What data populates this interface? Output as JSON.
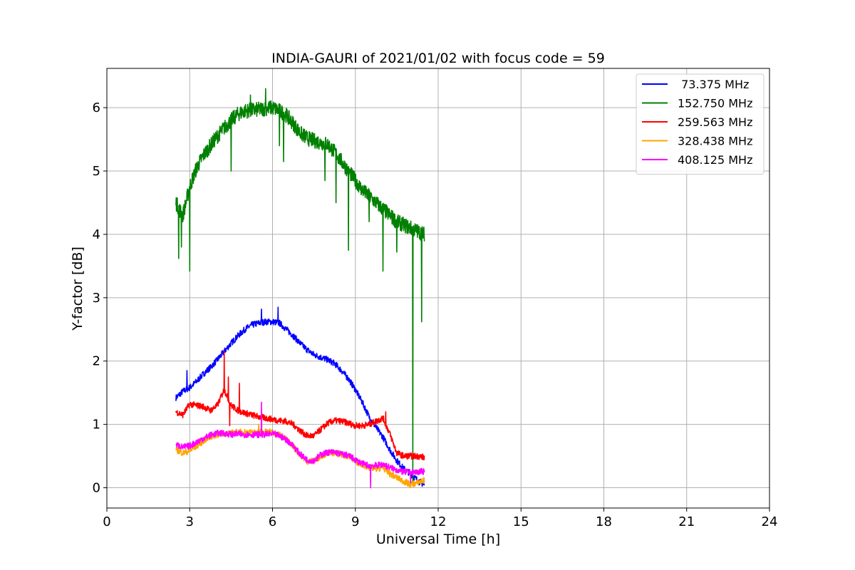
{
  "chart_data": {
    "type": "line",
    "title": "INDIA-GAURI of 2021/01/02 with focus code = 59",
    "xlabel": "Universal Time [h]",
    "ylabel": "Y-factor [dB]",
    "xlim": [
      0,
      24
    ],
    "ylim": [
      -0.32,
      6.62
    ],
    "xticks": [
      0,
      3,
      6,
      9,
      12,
      15,
      18,
      21,
      24
    ],
    "yticks": [
      0,
      1,
      2,
      3,
      4,
      5,
      6
    ],
    "xtick_labels": [
      "0",
      "3",
      "6",
      "9",
      "12",
      "15",
      "18",
      "21",
      "24"
    ],
    "ytick_labels": [
      "0",
      "1",
      "2",
      "3",
      "4",
      "5",
      "6"
    ],
    "grid": true,
    "legend_position": "top-right",
    "series": [
      {
        "name": " 73.375 MHz",
        "color": "#0000ff",
        "x": [
          2.5,
          2.75,
          3.0,
          3.25,
          3.5,
          3.75,
          4.0,
          4.25,
          4.5,
          4.75,
          5.0,
          5.25,
          5.5,
          5.75,
          6.0,
          6.25,
          6.5,
          6.75,
          7.0,
          7.25,
          7.5,
          7.75,
          8.0,
          8.25,
          8.5,
          8.75,
          9.0,
          9.25,
          9.5,
          9.75,
          10.0,
          10.25,
          10.5,
          10.75,
          11.0,
          11.25,
          11.5
        ],
        "y": [
          1.42,
          1.52,
          1.58,
          1.68,
          1.8,
          1.9,
          2.02,
          2.15,
          2.28,
          2.4,
          2.5,
          2.57,
          2.6,
          2.62,
          2.62,
          2.6,
          2.5,
          2.4,
          2.28,
          2.18,
          2.1,
          2.06,
          2.02,
          1.96,
          1.85,
          1.72,
          1.55,
          1.35,
          1.12,
          0.95,
          0.8,
          0.6,
          0.43,
          0.3,
          0.22,
          0.12,
          0.04
        ],
        "noise": 0.05,
        "spikes": [
          [
            6.2,
            2.85
          ],
          [
            5.6,
            2.82
          ],
          [
            2.9,
            1.85
          ]
        ]
      },
      {
        "name": "152.750 MHz",
        "color": "#008000",
        "x": [
          2.5,
          2.75,
          3.0,
          3.25,
          3.5,
          3.75,
          4.0,
          4.25,
          4.5,
          4.75,
          5.0,
          5.25,
          5.5,
          5.75,
          6.0,
          6.25,
          6.5,
          6.75,
          7.0,
          7.25,
          7.5,
          7.75,
          8.0,
          8.25,
          8.5,
          8.75,
          9.0,
          9.25,
          9.5,
          9.75,
          10.0,
          10.25,
          10.5,
          10.75,
          11.0,
          11.25,
          11.5
        ],
        "y": [
          4.5,
          4.3,
          4.75,
          5.05,
          5.25,
          5.4,
          5.55,
          5.68,
          5.8,
          5.9,
          5.95,
          5.96,
          5.97,
          5.99,
          6.0,
          5.95,
          5.88,
          5.75,
          5.6,
          5.52,
          5.48,
          5.45,
          5.42,
          5.3,
          5.15,
          5.0,
          4.85,
          4.7,
          4.6,
          4.5,
          4.4,
          4.3,
          4.2,
          4.15,
          4.1,
          4.05,
          4.0
        ],
        "noise": 0.12,
        "spikes": [
          [
            2.6,
            3.62
          ],
          [
            3.0,
            3.42
          ],
          [
            2.7,
            3.8
          ],
          [
            4.5,
            5.0
          ],
          [
            5.2,
            6.2
          ],
          [
            5.75,
            6.3
          ],
          [
            6.25,
            5.4
          ],
          [
            6.4,
            5.15
          ],
          [
            7.9,
            4.85
          ],
          [
            8.3,
            4.5
          ],
          [
            8.75,
            3.75
          ],
          [
            9.5,
            4.2
          ],
          [
            10.0,
            3.42
          ],
          [
            10.5,
            3.72
          ],
          [
            11.08,
            0.05
          ],
          [
            11.4,
            2.62
          ]
        ]
      },
      {
        "name": "259.563 MHz",
        "color": "#ff0000",
        "x": [
          2.5,
          2.75,
          3.0,
          3.25,
          3.5,
          3.75,
          4.0,
          4.25,
          4.5,
          4.75,
          5.0,
          5.25,
          5.5,
          5.75,
          6.0,
          6.25,
          6.5,
          6.75,
          7.0,
          7.25,
          7.5,
          7.75,
          8.0,
          8.25,
          8.5,
          8.75,
          9.0,
          9.25,
          9.5,
          9.75,
          10.0,
          10.25,
          10.5,
          10.75,
          11.0,
          11.25,
          11.5
        ],
        "y": [
          1.2,
          1.15,
          1.32,
          1.3,
          1.28,
          1.22,
          1.3,
          1.55,
          1.3,
          1.22,
          1.18,
          1.15,
          1.12,
          1.1,
          1.08,
          1.06,
          1.05,
          1.0,
          0.9,
          0.82,
          0.82,
          0.92,
          1.02,
          1.06,
          1.05,
          1.02,
          0.98,
          0.98,
          1.0,
          1.05,
          1.1,
          0.85,
          0.55,
          0.5,
          0.5,
          0.5,
          0.48
        ],
        "noise": 0.05,
        "spikes": [
          [
            4.25,
            2.15
          ],
          [
            4.4,
            1.75
          ],
          [
            4.45,
            0.98
          ],
          [
            4.8,
            1.65
          ],
          [
            5.6,
            1.2
          ],
          [
            10.1,
            1.2
          ]
        ]
      },
      {
        "name": "328.438 MHz",
        "color": "#ffa500",
        "x": [
          2.5,
          2.75,
          3.0,
          3.25,
          3.5,
          3.75,
          4.0,
          4.25,
          4.5,
          4.75,
          5.0,
          5.25,
          5.5,
          5.75,
          6.0,
          6.25,
          6.5,
          6.75,
          7.0,
          7.25,
          7.5,
          7.75,
          8.0,
          8.25,
          8.5,
          8.75,
          9.0,
          9.25,
          9.5,
          9.75,
          10.0,
          10.25,
          10.5,
          10.75,
          11.0,
          11.25,
          11.5
        ],
        "y": [
          0.6,
          0.55,
          0.58,
          0.66,
          0.74,
          0.8,
          0.84,
          0.86,
          0.86,
          0.88,
          0.88,
          0.87,
          0.88,
          0.88,
          0.88,
          0.84,
          0.76,
          0.66,
          0.52,
          0.42,
          0.42,
          0.5,
          0.55,
          0.55,
          0.52,
          0.5,
          0.42,
          0.36,
          0.32,
          0.3,
          0.32,
          0.22,
          0.16,
          0.1,
          0.05,
          0.08,
          0.12
        ],
        "noise": 0.05,
        "spikes": [
          [
            5.5,
            1.0
          ]
        ]
      },
      {
        "name": "408.125 MHz",
        "color": "#ff00ff",
        "x": [
          2.5,
          2.75,
          3.0,
          3.25,
          3.5,
          3.75,
          4.0,
          4.25,
          4.5,
          4.75,
          5.0,
          5.25,
          5.5,
          5.75,
          6.0,
          6.25,
          6.5,
          6.75,
          7.0,
          7.25,
          7.5,
          7.75,
          8.0,
          8.25,
          8.5,
          8.75,
          9.0,
          9.25,
          9.5,
          9.75,
          10.0,
          10.25,
          10.5,
          10.75,
          11.0,
          11.25,
          11.5
        ],
        "y": [
          0.68,
          0.64,
          0.66,
          0.72,
          0.78,
          0.83,
          0.86,
          0.86,
          0.84,
          0.85,
          0.84,
          0.84,
          0.84,
          0.84,
          0.85,
          0.82,
          0.76,
          0.66,
          0.53,
          0.44,
          0.43,
          0.52,
          0.56,
          0.56,
          0.53,
          0.51,
          0.44,
          0.38,
          0.35,
          0.35,
          0.37,
          0.32,
          0.28,
          0.25,
          0.24,
          0.25,
          0.26
        ],
        "noise": 0.05,
        "spikes": [
          [
            5.6,
            1.35
          ],
          [
            9.55,
            0.0
          ],
          [
            11.0,
            0.08
          ]
        ]
      }
    ]
  }
}
